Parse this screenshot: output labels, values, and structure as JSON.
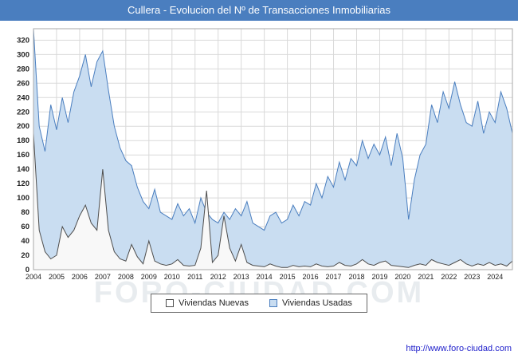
{
  "header": {
    "title": "Cullera - Evolucion del Nº de Transacciones Inmobiliarias"
  },
  "legend": {
    "items": [
      {
        "label": "Viviendas Nuevas",
        "fill": "#ffffff",
        "stroke": "#4d4d4d"
      },
      {
        "label": "Viviendas Usadas",
        "fill": "#c9ddf1",
        "stroke": "#4a7ebf"
      }
    ]
  },
  "watermark": "FORO-CIUDAD.COM",
  "footer": {
    "url": "http://www.foro-ciudad.com"
  },
  "colors": {
    "title_bar_bg": "#4a7ebf",
    "title_text": "#ffffff",
    "grid_line": "#d9d9d9",
    "plot_border": "#aaaaaa",
    "axis_text": "#222222",
    "link_blue": "#2222cc",
    "usadas_fill": "#c9ddf1",
    "usadas_line": "#4a7ebf",
    "nuevas_fill": "#f8f8f8",
    "nuevas_line": "#4d4d4d"
  },
  "chart_data": {
    "type": "area",
    "title": "Cullera - Evolucion del Nº de Transacciones Inmobiliarias",
    "xlabel": "",
    "ylabel": "",
    "grid": true,
    "legend_position": "bottom",
    "ylim": [
      0,
      336
    ],
    "yticks": [
      0,
      20,
      40,
      60,
      80,
      100,
      120,
      140,
      160,
      180,
      200,
      220,
      240,
      260,
      280,
      300,
      320
    ],
    "years": [
      "2004",
      "2005",
      "2006",
      "2007",
      "2008",
      "2009",
      "2010",
      "2011",
      "2012",
      "2013",
      "2014",
      "2015",
      "2016",
      "2017",
      "2018",
      "2019",
      "2020",
      "2021",
      "2022",
      "2023",
      "2024"
    ],
    "points_per_year": 4,
    "series": [
      {
        "name": "Viviendas Usadas",
        "color": "#4a7ebf",
        "fill": "#c9ddf1",
        "values": [
          350,
          200,
          165,
          230,
          195,
          240,
          205,
          248,
          270,
          300,
          255,
          290,
          305,
          250,
          200,
          170,
          152,
          145,
          115,
          95,
          85,
          112,
          80,
          75,
          70,
          92,
          75,
          85,
          65,
          100,
          80,
          70,
          65,
          80,
          70,
          85,
          75,
          95,
          65,
          60,
          55,
          75,
          80,
          65,
          70,
          90,
          75,
          95,
          90,
          120,
          100,
          130,
          115,
          150,
          125,
          155,
          145,
          180,
          155,
          175,
          160,
          185,
          145,
          190,
          155,
          70,
          125,
          160,
          175,
          230,
          205,
          248,
          225,
          262,
          230,
          205,
          200,
          235,
          190,
          220,
          205,
          248,
          225,
          190
        ]
      },
      {
        "name": "Viviendas Nuevas",
        "color": "#4d4d4d",
        "fill": "#f8f8f8",
        "values": [
          190,
          55,
          25,
          15,
          20,
          60,
          45,
          55,
          75,
          90,
          65,
          55,
          140,
          55,
          25,
          15,
          12,
          35,
          18,
          8,
          40,
          12,
          8,
          6,
          8,
          14,
          6,
          5,
          6,
          30,
          110,
          10,
          20,
          75,
          30,
          12,
          35,
          10,
          6,
          5,
          4,
          8,
          5,
          3,
          3,
          6,
          4,
          5,
          4,
          8,
          5,
          4,
          5,
          10,
          6,
          5,
          8,
          14,
          8,
          6,
          10,
          12,
          6,
          5,
          4,
          3,
          6,
          8,
          6,
          14,
          10,
          8,
          6,
          10,
          14,
          8,
          5,
          8,
          6,
          10,
          6,
          8,
          5,
          12
        ]
      }
    ]
  }
}
